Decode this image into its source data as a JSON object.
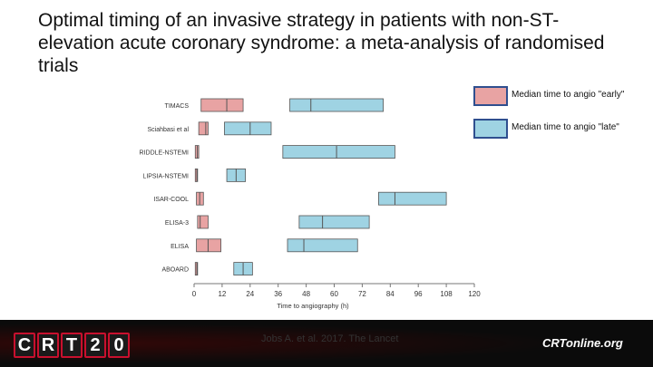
{
  "title": "Optimal timing of an invasive strategy in patients with non-ST-elevation acute coronary syndrome: a meta-analysis of randomised trials",
  "legend": [
    {
      "label": "Median time to angio \"early\"",
      "color": "#e8a3a3"
    },
    {
      "label": "Median time to angio \"late\"",
      "color": "#9fd3e3"
    }
  ],
  "footer": {
    "logo_letters": [
      "C",
      "R",
      "T",
      "2",
      "0"
    ],
    "citation": "Jobs A. et al. 2017. The Lancet",
    "online_logo": "CRTonline.org"
  },
  "colors": {
    "early": "#e8a3a3",
    "late": "#9fd3e3",
    "border": "#555555",
    "axis": "#777777"
  },
  "chart_data": {
    "type": "bar",
    "subtype": "horizontal range (box) chart",
    "xlabel": "Time to angiography (h)",
    "xlim": [
      0,
      120
    ],
    "xticks": [
      0,
      12,
      24,
      36,
      48,
      60,
      72,
      84,
      96,
      108,
      120
    ],
    "categories": [
      "TIMACS",
      "Sciahbasi et al",
      "RIDDLE-NSTEMI",
      "LIPSIA-NSTEMI",
      "ISAR-COOL",
      "ELISA-3",
      "ELISA",
      "ABOARD"
    ],
    "series": [
      {
        "name": "Median time to angio \"early\"",
        "color": "#e8a3a3",
        "ranges": [
          {
            "low": 3,
            "median": 14,
            "high": 21
          },
          {
            "low": 2,
            "median": 5,
            "high": 6
          },
          {
            "low": 0.5,
            "median": 1.4,
            "high": 2
          },
          {
            "low": 0.5,
            "median": 1.2,
            "high": 1.5
          },
          {
            "low": 1,
            "median": 2.4,
            "high": 4
          },
          {
            "low": 1.5,
            "median": 2.6,
            "high": 6
          },
          {
            "low": 1,
            "median": 6,
            "high": 11.5
          },
          {
            "low": 0.5,
            "median": 1.2,
            "high": 1.5
          }
        ]
      },
      {
        "name": "Median time to angio \"late\"",
        "color": "#9fd3e3",
        "ranges": [
          {
            "low": 41,
            "median": 50,
            "high": 81
          },
          {
            "low": 13,
            "median": 24,
            "high": 33
          },
          {
            "low": 38,
            "median": 61,
            "high": 86
          },
          {
            "low": 14,
            "median": 18,
            "high": 22
          },
          {
            "low": 79,
            "median": 86,
            "high": 108
          },
          {
            "low": 45,
            "median": 55,
            "high": 75
          },
          {
            "low": 40,
            "median": 47,
            "high": 70
          },
          {
            "low": 17,
            "median": 21,
            "high": 25
          }
        ]
      }
    ]
  }
}
